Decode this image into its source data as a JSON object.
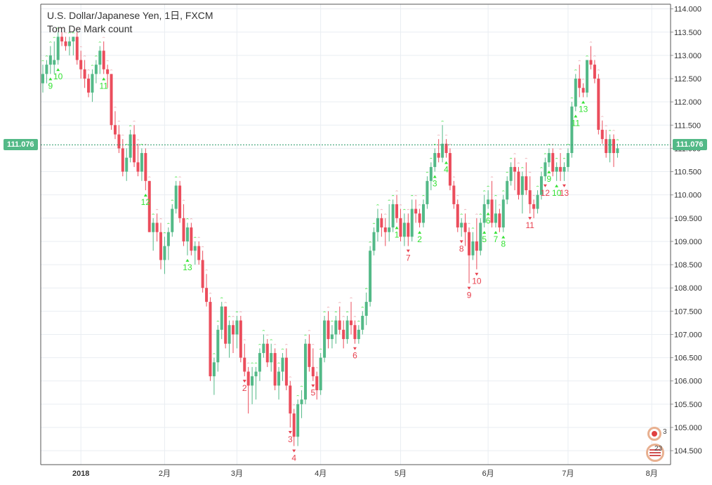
{
  "header": {
    "title": "U.S. Dollar/Japanese Yen, 1日, FXCM",
    "indicator": "Tom De Mark count"
  },
  "current_price": "111.076",
  "widget": {
    "count_top": "3",
    "count_bottom": "23"
  },
  "colors": {
    "up": "#53b987",
    "down": "#eb4d5c",
    "grid": "#e9edf2",
    "axis_text": "#333333",
    "buy_count": "#33e233",
    "sell_count": "#e8404e",
    "price_line": "#2a9a6a",
    "price_tag": "#53b987",
    "setup_mark": "#e8a0a8"
  },
  "chart_data": {
    "type": "candlestick",
    "title": "U.S. Dollar/Japanese Yen, 1日, FXCM",
    "subtitle": "Tom De Mark count",
    "ylim": [
      104.2,
      114.1
    ],
    "y_ticks": [
      "114.000",
      "113.500",
      "113.000",
      "112.500",
      "112.000",
      "111.500",
      "111.000",
      "110.500",
      "110.000",
      "109.500",
      "109.000",
      "108.500",
      "108.000",
      "107.500",
      "107.000",
      "106.500",
      "106.000",
      "105.500",
      "105.000",
      "104.500"
    ],
    "x_ticks": [
      {
        "index": 10,
        "label": "2018"
      },
      {
        "index": 32,
        "label": "2月"
      },
      {
        "index": 51,
        "label": "3月"
      },
      {
        "index": 73,
        "label": "4月"
      },
      {
        "index": 94,
        "label": "5月"
      },
      {
        "index": 117,
        "label": "6月"
      },
      {
        "index": 138,
        "label": "7月"
      },
      {
        "index": 160,
        "label": "8月"
      }
    ],
    "last_price": 111.076,
    "candles": [
      [
        112.4,
        112.8,
        112.2,
        112.6
      ],
      [
        112.6,
        112.9,
        112.4,
        112.8
      ],
      [
        112.8,
        113.2,
        112.6,
        113.0
      ],
      [
        112.8,
        113.3,
        112.6,
        112.9
      ],
      [
        112.9,
        113.5,
        112.8,
        113.4
      ],
      [
        113.4,
        113.5,
        113.2,
        113.3
      ],
      [
        113.3,
        113.4,
        113.1,
        113.2
      ],
      [
        113.2,
        113.4,
        113.0,
        113.3
      ],
      [
        113.3,
        113.4,
        113.0,
        113.4
      ],
      [
        113.4,
        113.5,
        112.8,
        112.9
      ],
      [
        112.9,
        113.1,
        112.5,
        112.7
      ],
      [
        112.7,
        112.9,
        112.3,
        112.5
      ],
      [
        112.5,
        112.6,
        112.1,
        112.2
      ],
      [
        112.2,
        112.7,
        112.0,
        112.6
      ],
      [
        112.6,
        112.9,
        112.4,
        112.8
      ],
      [
        112.8,
        113.2,
        112.6,
        113.1
      ],
      [
        113.1,
        113.3,
        112.6,
        112.7
      ],
      [
        112.7,
        112.8,
        112.3,
        112.6
      ],
      [
        112.6,
        112.6,
        111.4,
        111.5
      ],
      [
        111.5,
        111.8,
        111.2,
        111.3
      ],
      [
        111.3,
        111.5,
        110.9,
        111.0
      ],
      [
        111.0,
        111.2,
        110.4,
        110.5
      ],
      [
        110.5,
        111.0,
        110.3,
        110.8
      ],
      [
        110.8,
        111.4,
        110.7,
        111.3
      ],
      [
        111.3,
        111.5,
        110.6,
        110.7
      ],
      [
        110.7,
        111.1,
        110.4,
        110.5
      ],
      [
        110.5,
        111.0,
        110.3,
        110.9
      ],
      [
        110.9,
        111.0,
        110.1,
        110.3
      ],
      [
        110.3,
        110.3,
        109.2,
        109.2
      ],
      [
        109.2,
        109.5,
        108.8,
        109.4
      ],
      [
        109.4,
        109.6,
        109.0,
        109.2
      ],
      [
        109.2,
        109.4,
        108.4,
        108.6
      ],
      [
        108.6,
        109.1,
        108.3,
        108.9
      ],
      [
        108.9,
        109.3,
        108.6,
        109.2
      ],
      [
        109.2,
        109.8,
        109.1,
        109.7
      ],
      [
        109.7,
        110.3,
        109.6,
        110.2
      ],
      [
        110.2,
        110.3,
        109.4,
        109.5
      ],
      [
        109.5,
        109.8,
        108.9,
        109.0
      ],
      [
        109.0,
        109.4,
        108.7,
        109.3
      ],
      [
        109.3,
        109.4,
        108.7,
        108.8
      ],
      [
        108.8,
        109.0,
        108.5,
        108.9
      ],
      [
        108.9,
        109.0,
        108.5,
        108.6
      ],
      [
        108.6,
        108.8,
        107.9,
        108.0
      ],
      [
        108.0,
        108.3,
        107.6,
        107.7
      ],
      [
        107.7,
        107.8,
        106.0,
        106.1
      ],
      [
        106.1,
        106.5,
        105.7,
        106.4
      ],
      [
        106.4,
        107.2,
        106.2,
        107.1
      ],
      [
        107.1,
        107.7,
        106.9,
        107.6
      ],
      [
        107.6,
        107.6,
        106.7,
        106.8
      ],
      [
        106.8,
        107.3,
        106.5,
        107.2
      ],
      [
        107.2,
        107.3,
        106.6,
        107.0
      ],
      [
        107.0,
        107.4,
        106.7,
        107.3
      ],
      [
        107.3,
        107.4,
        106.4,
        106.5
      ],
      [
        106.5,
        106.8,
        106.1,
        106.2
      ],
      [
        106.2,
        106.3,
        105.3,
        105.9
      ],
      [
        105.9,
        106.3,
        105.5,
        106.1
      ],
      [
        106.1,
        106.3,
        105.6,
        106.2
      ],
      [
        106.2,
        106.7,
        106.0,
        106.6
      ],
      [
        106.6,
        107.0,
        106.5,
        106.8
      ],
      [
        106.8,
        106.9,
        106.3,
        106.4
      ],
      [
        106.4,
        106.8,
        106.2,
        106.6
      ],
      [
        106.6,
        106.7,
        105.8,
        105.9
      ],
      [
        105.9,
        106.3,
        105.6,
        106.2
      ],
      [
        106.2,
        106.6,
        106.0,
        106.5
      ],
      [
        106.5,
        106.7,
        105.8,
        105.9
      ],
      [
        105.9,
        106.0,
        105.0,
        105.3
      ],
      [
        105.3,
        105.4,
        104.6,
        104.8
      ],
      [
        104.8,
        105.6,
        104.6,
        105.5
      ],
      [
        105.5,
        105.8,
        105.2,
        105.6
      ],
      [
        105.6,
        106.9,
        105.5,
        106.8
      ],
      [
        106.8,
        107.0,
        106.2,
        106.3
      ],
      [
        106.3,
        106.7,
        106.0,
        106.1
      ],
      [
        106.1,
        106.2,
        105.6,
        105.8
      ],
      [
        105.8,
        106.6,
        105.7,
        106.5
      ],
      [
        106.5,
        107.4,
        106.4,
        107.3
      ],
      [
        107.3,
        107.5,
        106.7,
        106.9
      ],
      [
        106.9,
        107.2,
        106.7,
        107.0
      ],
      [
        107.0,
        107.4,
        106.8,
        107.3
      ],
      [
        107.3,
        107.6,
        107.0,
        107.1
      ],
      [
        107.1,
        107.3,
        106.7,
        106.9
      ],
      [
        106.9,
        107.4,
        106.8,
        107.3
      ],
      [
        107.3,
        107.7,
        107.0,
        107.2
      ],
      [
        107.2,
        107.3,
        106.8,
        106.9
      ],
      [
        106.9,
        107.2,
        106.8,
        107.1
      ],
      [
        107.1,
        107.5,
        107.0,
        107.4
      ],
      [
        107.4,
        107.9,
        107.2,
        107.7
      ],
      [
        107.7,
        108.9,
        107.6,
        108.8
      ],
      [
        108.8,
        109.3,
        108.7,
        109.2
      ],
      [
        109.2,
        109.7,
        109.0,
        109.5
      ],
      [
        109.5,
        109.6,
        109.1,
        109.3
      ],
      [
        109.3,
        109.5,
        108.9,
        109.2
      ],
      [
        109.2,
        109.8,
        109.0,
        109.3
      ],
      [
        109.3,
        109.9,
        109.2,
        109.8
      ],
      [
        109.8,
        110.0,
        109.4,
        109.5
      ],
      [
        109.5,
        109.7,
        109.0,
        109.1
      ],
      [
        109.1,
        109.6,
        108.9,
        109.4
      ],
      [
        109.4,
        109.6,
        108.9,
        109.1
      ],
      [
        109.1,
        109.9,
        109.0,
        109.7
      ],
      [
        109.7,
        109.9,
        109.4,
        109.6
      ],
      [
        109.6,
        109.7,
        109.3,
        109.4
      ],
      [
        109.4,
        109.9,
        109.3,
        109.8
      ],
      [
        109.8,
        110.4,
        109.7,
        110.3
      ],
      [
        110.3,
        110.7,
        110.1,
        110.6
      ],
      [
        110.6,
        111.0,
        110.5,
        110.9
      ],
      [
        110.9,
        111.2,
        110.7,
        110.8
      ],
      [
        110.8,
        111.5,
        110.7,
        111.1
      ],
      [
        111.1,
        111.2,
        110.8,
        110.9
      ],
      [
        110.9,
        111.0,
        110.1,
        110.2
      ],
      [
        110.2,
        110.3,
        109.7,
        109.8
      ],
      [
        109.8,
        109.9,
        109.2,
        109.3
      ],
      [
        109.3,
        109.5,
        109.1,
        109.4
      ],
      [
        109.4,
        109.6,
        108.9,
        109.2
      ],
      [
        109.2,
        109.3,
        108.1,
        108.7
      ],
      [
        108.7,
        109.2,
        108.6,
        109.0
      ],
      [
        109.0,
        109.5,
        108.4,
        108.8
      ],
      [
        108.8,
        109.5,
        108.7,
        109.4
      ],
      [
        109.4,
        110.0,
        109.3,
        109.8
      ],
      [
        109.8,
        110.1,
        109.7,
        109.9
      ],
      [
        109.9,
        110.3,
        109.3,
        109.4
      ],
      [
        109.4,
        109.9,
        109.3,
        109.6
      ],
      [
        109.6,
        109.7,
        109.2,
        109.3
      ],
      [
        109.3,
        110.0,
        109.2,
        109.9
      ],
      [
        109.9,
        110.4,
        109.8,
        110.3
      ],
      [
        110.3,
        110.7,
        110.2,
        110.6
      ],
      [
        110.6,
        110.8,
        110.1,
        110.5
      ],
      [
        110.5,
        110.6,
        109.9,
        110.0
      ],
      [
        110.0,
        110.5,
        109.6,
        110.4
      ],
      [
        110.4,
        110.7,
        110.0,
        110.1
      ],
      [
        110.1,
        110.4,
        109.6,
        109.8
      ],
      [
        109.8,
        109.9,
        109.5,
        109.7
      ],
      [
        109.7,
        110.1,
        109.6,
        110.0
      ],
      [
        110.0,
        110.5,
        109.9,
        110.4
      ],
      [
        110.4,
        110.8,
        110.3,
        110.7
      ],
      [
        110.7,
        111.0,
        110.6,
        110.9
      ],
      [
        110.9,
        111.0,
        110.4,
        110.5
      ],
      [
        110.5,
        110.7,
        110.3,
        110.6
      ],
      [
        110.6,
        110.9,
        110.3,
        110.5
      ],
      [
        110.5,
        110.7,
        110.3,
        110.6
      ],
      [
        110.6,
        111.0,
        110.5,
        110.9
      ],
      [
        110.9,
        112.0,
        110.8,
        111.9
      ],
      [
        111.9,
        112.6,
        111.8,
        112.5
      ],
      [
        112.5,
        112.8,
        112.1,
        112.3
      ],
      [
        112.3,
        112.4,
        112.1,
        112.2
      ],
      [
        112.2,
        112.9,
        112.1,
        112.9
      ],
      [
        112.9,
        113.2,
        112.7,
        112.8
      ],
      [
        112.8,
        112.9,
        112.4,
        112.5
      ],
      [
        112.5,
        112.6,
        111.3,
        111.4
      ],
      [
        111.4,
        111.6,
        111.1,
        111.2
      ],
      [
        111.2,
        111.4,
        110.8,
        110.9
      ],
      [
        110.9,
        111.3,
        110.7,
        111.2
      ],
      [
        111.2,
        111.3,
        110.6,
        110.9
      ],
      [
        110.9,
        111.1,
        110.8,
        111.0
      ]
    ],
    "td_labels": [
      {
        "index": 2,
        "side": "buy",
        "text": "9"
      },
      {
        "index": 4,
        "side": "buy",
        "text": "10"
      },
      {
        "index": 16,
        "side": "buy",
        "text": "11"
      },
      {
        "index": 27,
        "side": "buy",
        "text": "12"
      },
      {
        "index": 38,
        "side": "buy",
        "text": "13"
      },
      {
        "index": 53,
        "side": "sell",
        "text": "2"
      },
      {
        "index": 65,
        "side": "sell",
        "text": "3"
      },
      {
        "index": 66,
        "side": "sell",
        "text": "4"
      },
      {
        "index": 71,
        "side": "sell",
        "text": "5"
      },
      {
        "index": 82,
        "side": "sell",
        "text": "6"
      },
      {
        "index": 93,
        "side": "buy",
        "text": "1"
      },
      {
        "index": 96,
        "side": "sell",
        "text": "7"
      },
      {
        "index": 99,
        "side": "buy",
        "text": "2"
      },
      {
        "index": 103,
        "side": "buy",
        "text": "3"
      },
      {
        "index": 106,
        "side": "buy",
        "text": "4"
      },
      {
        "index": 110,
        "side": "sell",
        "text": "8"
      },
      {
        "index": 112,
        "side": "sell",
        "text": "9"
      },
      {
        "index": 114,
        "side": "sell",
        "text": "10"
      },
      {
        "index": 116,
        "side": "buy",
        "text": "5"
      },
      {
        "index": 117,
        "side": "buy",
        "text": "6"
      },
      {
        "index": 119,
        "side": "buy",
        "text": "7"
      },
      {
        "index": 121,
        "side": "buy",
        "text": "8"
      },
      {
        "index": 128,
        "side": "sell",
        "text": "11"
      },
      {
        "index": 132,
        "side": "sell",
        "text": "12"
      },
      {
        "index": 133,
        "side": "buy",
        "text": "9"
      },
      {
        "index": 135,
        "side": "buy",
        "text": "10"
      },
      {
        "index": 137,
        "side": "sell",
        "text": "13"
      },
      {
        "index": 140,
        "side": "buy",
        "text": "11"
      },
      {
        "index": 142,
        "side": "buy",
        "text": "13"
      }
    ]
  }
}
